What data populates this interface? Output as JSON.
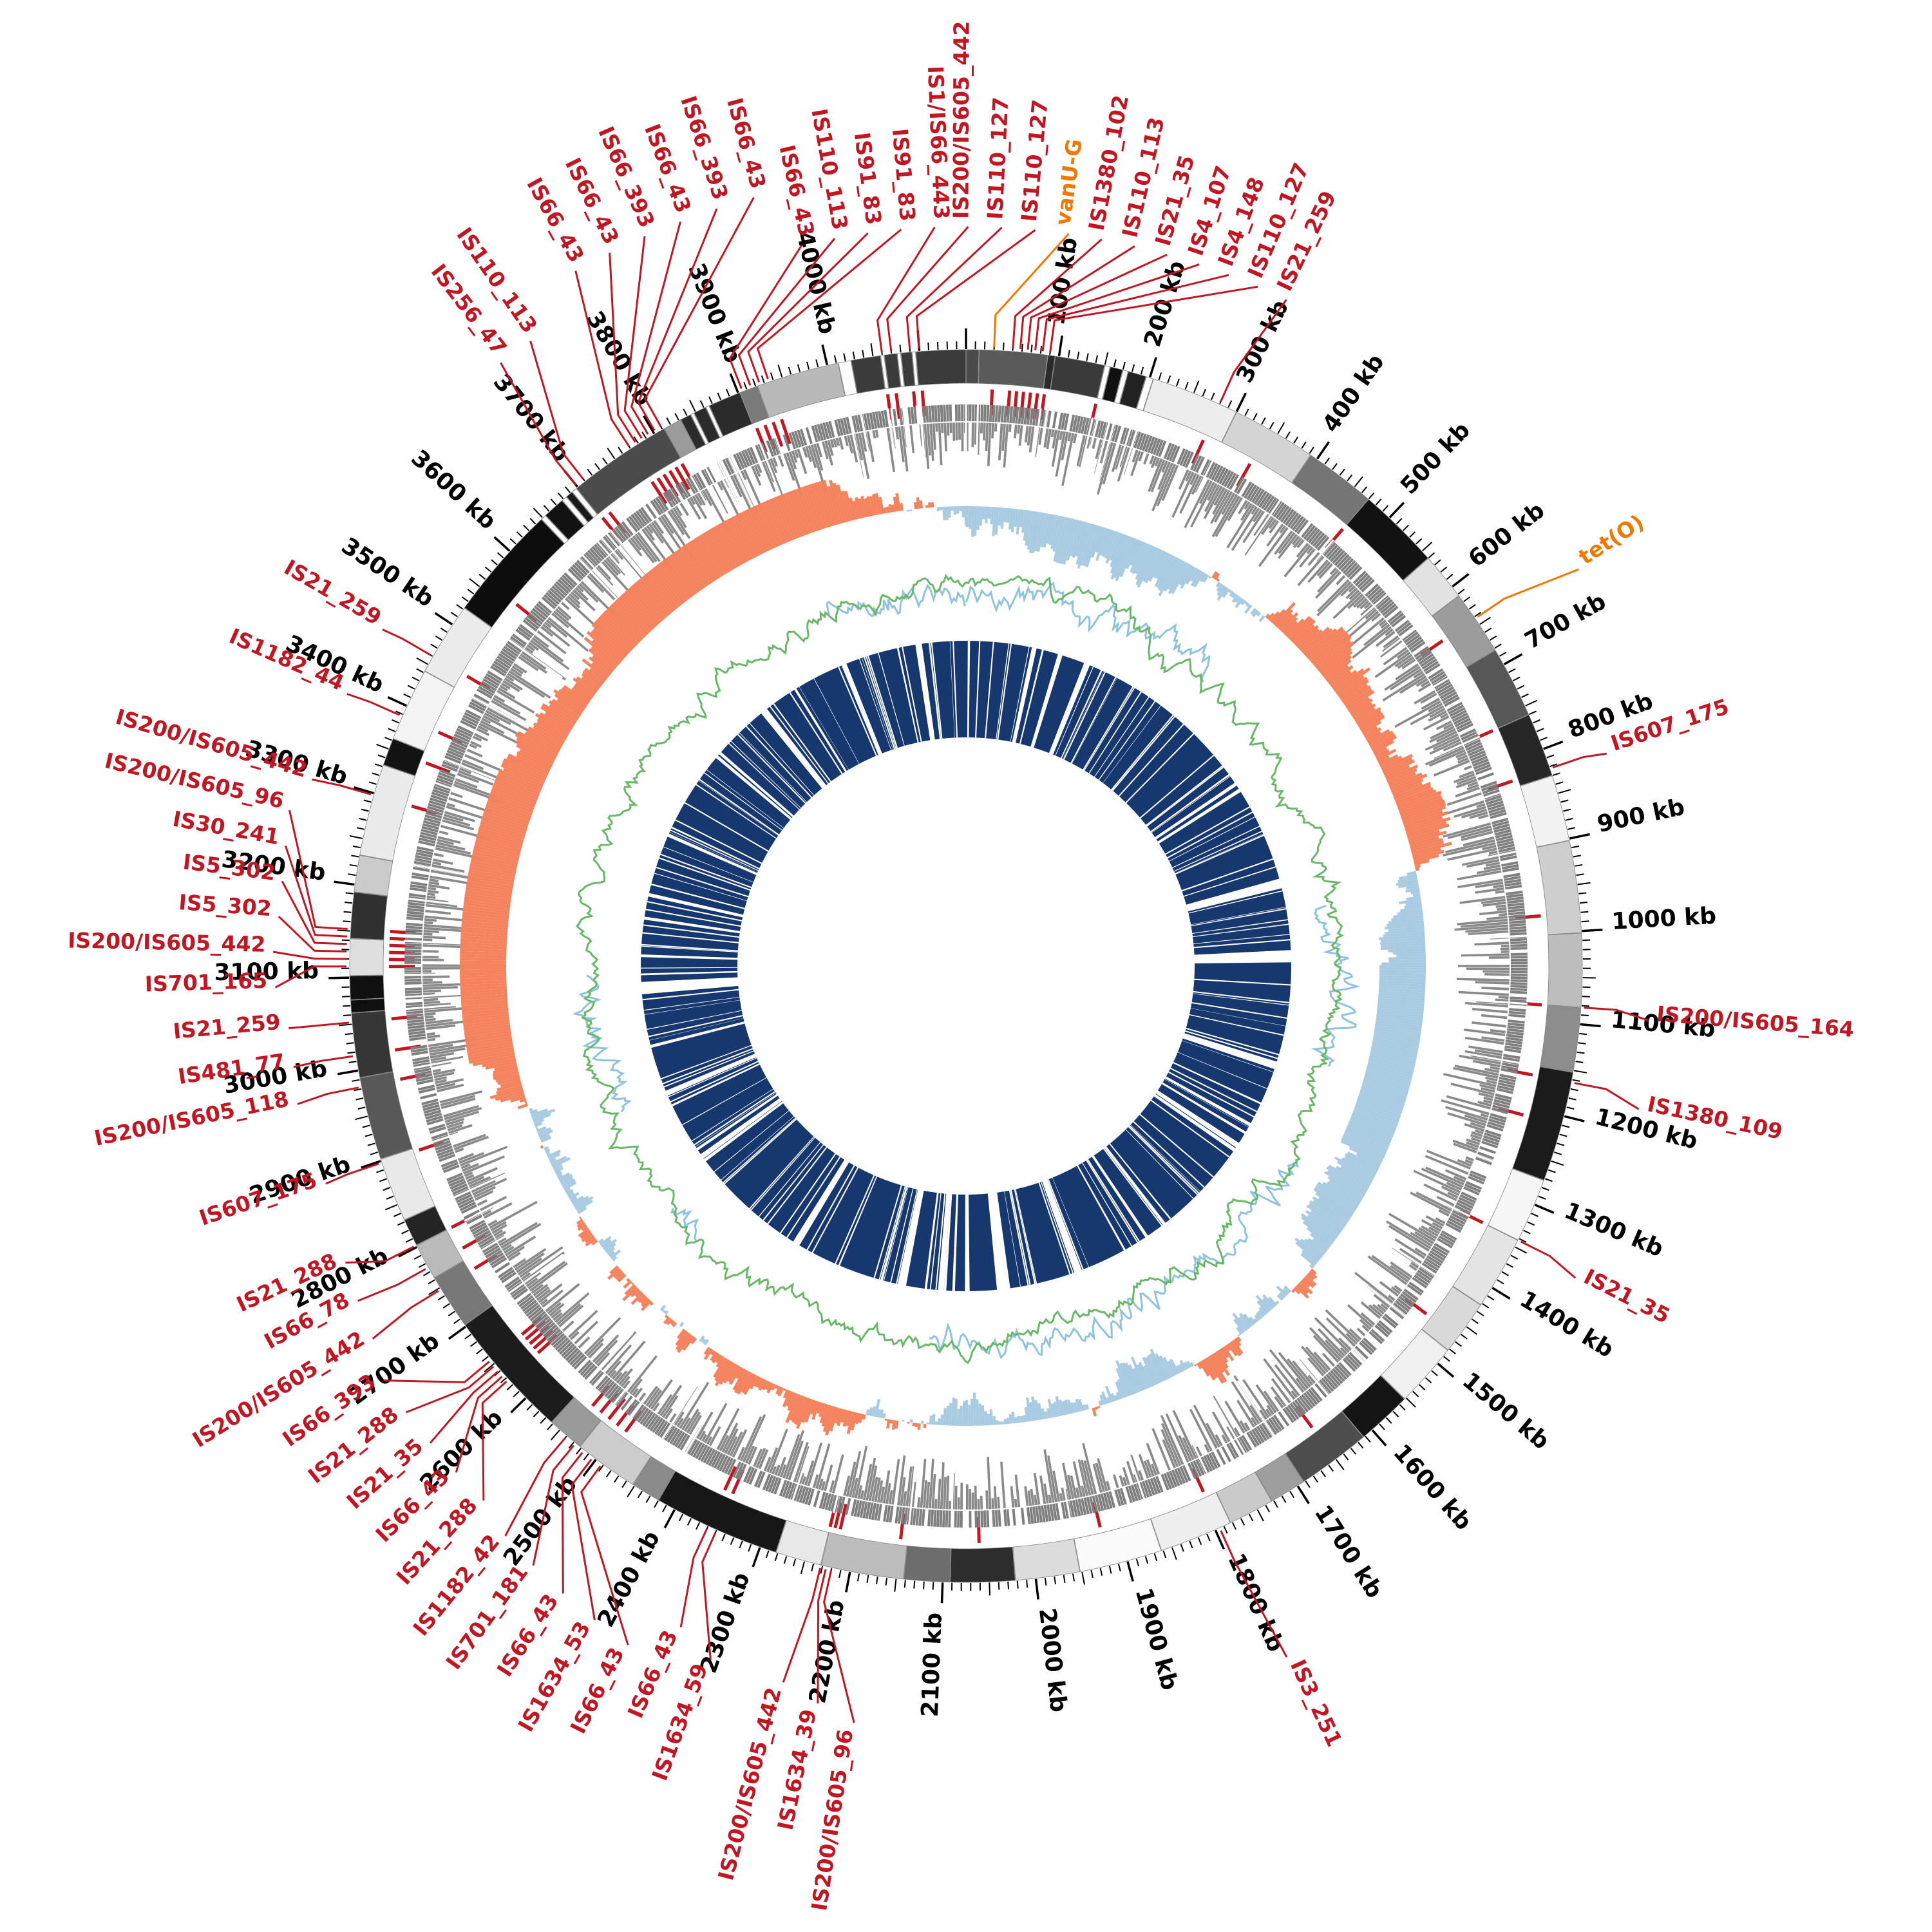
{
  "figure": {
    "description": "Circular bacterial genome plot (Circos style) with contig ring, IS-element ticks, CDS density, GC skew, GC content and coverage rings, annotated with IS element and resistance gene labels"
  },
  "chart_data": {
    "type": "circos",
    "genome_length_kb": 4150,
    "scale": {
      "minor_kb": 10,
      "mid_kb": 50,
      "major_kb": 100,
      "unit": "kb",
      "first_label_kb": 100,
      "last_label_kb": 4000,
      "r": 958,
      "label_r": 1005
    },
    "colors": {
      "tick": "#000000",
      "is": "#c01722",
      "gene": "#f07800",
      "skew_pos": "#f4825c",
      "skew_neg": "#a9cbe1",
      "gc": "#68b868",
      "gc_alt": "#8fc3dd",
      "cds": "#8a8a8a",
      "cds_solid": "#7f7f7f",
      "coverage": "#16386e",
      "contig_stroke": "#808080"
    },
    "rings": {
      "contigs": {
        "r0": 905,
        "r1": 957
      },
      "is_ticks": {
        "r0": 856,
        "r1": 896
      },
      "cds": {
        "r0": 770,
        "r1": 872,
        "solid_r0": 846
      },
      "gc_skew": {
        "r0": 640,
        "r1": 788,
        "base": 714,
        "amp": 72
      },
      "gc_content": {
        "r0": 532,
        "r1": 636,
        "base": 584,
        "amp": 52
      },
      "coverage": {
        "r0": 355,
        "r1": 505
      }
    },
    "seeds": {
      "cds": 11,
      "skew_low": 21,
      "skew_mid": 22,
      "skew_high": 23,
      "gc_mid": 31,
      "gc_high": 32,
      "gc_gate": 33,
      "blue_mid": 34,
      "blue_high": 35,
      "coverage": 41
    },
    "contigs": [
      [
        0,
        14,
        "#4a4a4a"
      ],
      [
        14,
        88,
        "#5a5a5a"
      ],
      [
        88,
        96,
        "#2a2a2a"
      ],
      [
        96,
        150,
        "#3a3a3a"
      ],
      [
        150,
        156,
        "#ffffff"
      ],
      [
        156,
        170,
        "#111111"
      ],
      [
        170,
        176,
        "#ffffff"
      ],
      [
        176,
        196,
        "#222222"
      ],
      [
        196,
        204,
        "#ffffff"
      ],
      [
        204,
        300,
        "#ededed"
      ],
      [
        300,
        392,
        "#d4d4d4"
      ],
      [
        392,
        470,
        "#757575"
      ],
      [
        470,
        560,
        "#121212"
      ],
      [
        560,
        612,
        "#e2e2e2"
      ],
      [
        612,
        682,
        "#9c9c9c"
      ],
      [
        682,
        760,
        "#575757"
      ],
      [
        760,
        830,
        "#262626"
      ],
      [
        830,
        902,
        "#f2f2f2"
      ],
      [
        902,
        1002,
        "#cecece"
      ],
      [
        1002,
        1082,
        "#bdbdbd"
      ],
      [
        1082,
        1152,
        "#8d8d8d"
      ],
      [
        1152,
        1272,
        "#1b1b1b"
      ],
      [
        1272,
        1342,
        "#f6f6f6"
      ],
      [
        1342,
        1422,
        "#e4e4e4"
      ],
      [
        1422,
        1482,
        "#d9d9d9"
      ],
      [
        1482,
        1552,
        "#f0f0f0"
      ],
      [
        1552,
        1612,
        "#141414"
      ],
      [
        1612,
        1692,
        "#4d4d4d"
      ],
      [
        1692,
        1732,
        "#9e9e9e"
      ],
      [
        1732,
        1782,
        "#cacaca"
      ],
      [
        1782,
        1862,
        "#eeeeee"
      ],
      [
        1862,
        1952,
        "#fafafa"
      ],
      [
        1952,
        2022,
        "#dcdcdc"
      ],
      [
        2022,
        2092,
        "#2d2d2d"
      ],
      [
        2092,
        2142,
        "#6d6d6d"
      ],
      [
        2142,
        2232,
        "#bcbcbc"
      ],
      [
        2232,
        2282,
        "#e7e7e7"
      ],
      [
        2282,
        2420,
        "#171717"
      ],
      [
        2420,
        2452,
        "#8b8b8b"
      ],
      [
        2452,
        2522,
        "#cccccc"
      ],
      [
        2522,
        2562,
        "#9a9a9a"
      ],
      [
        2562,
        2702,
        "#1c1c1c"
      ],
      [
        2702,
        2762,
        "#787878"
      ],
      [
        2762,
        2802,
        "#bababa"
      ],
      [
        2802,
        2832,
        "#242424"
      ],
      [
        2832,
        2902,
        "#e9e9e9"
      ],
      [
        2902,
        2992,
        "#585858"
      ],
      [
        2992,
        3062,
        "#363636"
      ],
      [
        3062,
        3076,
        "#0f0f0f"
      ],
      [
        3076,
        3102,
        "#101010"
      ],
      [
        3102,
        3142,
        "#dedede"
      ],
      [
        3142,
        3192,
        "#303030"
      ],
      [
        3192,
        3232,
        "#cbcbcb"
      ],
      [
        3232,
        3332,
        "#eaeaea"
      ],
      [
        3332,
        3362,
        "#131313"
      ],
      [
        3362,
        3442,
        "#f3f3f3"
      ],
      [
        3442,
        3522,
        "#ebebeb"
      ],
      [
        3522,
        3648,
        "#0d0d0d"
      ],
      [
        3648,
        3654,
        "#ffffff"
      ],
      [
        3654,
        3678,
        "#121212"
      ],
      [
        3678,
        3684,
        "#ffffff"
      ],
      [
        3684,
        3692,
        "#1a1a1a"
      ],
      [
        3692,
        3698,
        "#ffffff"
      ],
      [
        3698,
        3812,
        "#4b4b4b"
      ],
      [
        3812,
        3832,
        "#9b9b9b"
      ],
      [
        3832,
        3844,
        "#2b2b2b"
      ],
      [
        3844,
        3848,
        "#ffffff"
      ],
      [
        3848,
        3862,
        "#2b2b2b"
      ],
      [
        3862,
        3866,
        "#ffffff"
      ],
      [
        3866,
        3902,
        "#2b2b2b"
      ],
      [
        3902,
        3922,
        "#7a7a7a"
      ],
      [
        3922,
        4012,
        "#b9b9b9"
      ],
      [
        4012,
        4026,
        "#fcfcfc"
      ],
      [
        4026,
        4058,
        "#3b3b3b"
      ],
      [
        4058,
        4062,
        "#ffffff"
      ],
      [
        4062,
        4076,
        "#3b3b3b"
      ],
      [
        4076,
        4080,
        "#ffffff"
      ],
      [
        4080,
        4092,
        "#3b3b3b"
      ],
      [
        4092,
        4096,
        "#ffffff"
      ],
      [
        4096,
        4150,
        "#3b3b3b"
      ]
    ],
    "extra_is_ticks": [
      150,
      340,
      470,
      760,
      980,
      1210,
      1465,
      1650,
      1920,
      2060,
      2150,
      3350,
      3560
    ],
    "coverage_gaps": [
      [
        868,
        878
      ],
      [
        1005,
        1030
      ],
      [
        1430,
        1438
      ],
      [
        1985,
        2012
      ],
      [
        2120,
        2132
      ],
      [
        2430,
        2445
      ],
      [
        2695,
        2705
      ],
      [
        3055,
        3080
      ],
      [
        3255,
        3262
      ],
      [
        3700,
        3715
      ],
      [
        4048,
        4060
      ]
    ],
    "annotations": [
      {
        "t": "IS66_43",
        "p": 3905,
        "lp": 4002,
        "r": 1160
      },
      {
        "t": "IS110_113",
        "p": 3915,
        "lp": 4032,
        "r": 1160
      },
      {
        "t": "IS91_83",
        "p": 3925,
        "lp": 4062,
        "r": 1160
      },
      {
        "t": "IS91_83",
        "p": 3935,
        "lp": 4092,
        "r": 1160
      },
      {
        "t": "IS1/IS66_443",
        "p": 4060,
        "lp": 4122,
        "r": 1160
      },
      {
        "t": "IS200/IS605_442",
        "p": 4070,
        "lp": 4152,
        "r": 1160
      },
      {
        "t": "IS110_127",
        "p": 4090,
        "lp": 4182,
        "r": 1160
      },
      {
        "t": "IS110_127",
        "p": 4100,
        "lp": 4212,
        "r": 1160
      },
      {
        "t": "vanU-G",
        "p": 30,
        "lp": 92,
        "r": 1160,
        "c": "gene"
      },
      {
        "t": "IS1380_102",
        "p": 50,
        "lp": 122,
        "r": 1160
      },
      {
        "t": "IS110_113",
        "p": 58,
        "lp": 152,
        "r": 1160
      },
      {
        "t": "IS21_35",
        "p": 66,
        "lp": 182,
        "r": 1160
      },
      {
        "t": "IS4_107",
        "p": 74,
        "lp": 212,
        "r": 1160
      },
      {
        "t": "IS4_148",
        "p": 82,
        "lp": 240,
        "r": 1160
      },
      {
        "t": "IS110_127",
        "p": 90,
        "lp": 268,
        "r": 1160
      },
      {
        "t": "IS21_259",
        "p": 280,
        "lp": 296,
        "r": 1160
      },
      {
        "t": "tet(O)",
        "p": 642,
        "lp": 658,
        "r": 1145,
        "c": "gene"
      },
      {
        "t": "IS607_175",
        "p": 822,
        "lp": 826,
        "r": 1060
      },
      {
        "t": "IS200/IS605_164",
        "p": 1082,
        "lp": 1090,
        "r": 1075
      },
      {
        "t": "IS1380_109",
        "p": 1163,
        "lp": 1176,
        "r": 1080
      },
      {
        "t": "IS21_35",
        "p": 1342,
        "lp": 1350,
        "r": 1075
      },
      {
        "t": "IS3_251",
        "p": 1795,
        "lp": 1788,
        "r": 1195
      },
      {
        "t": "IS200/IS605_96",
        "p": 2220,
        "lp": 2172,
        "r": 1200
      },
      {
        "t": "IS1634_39",
        "p": 2226,
        "lp": 2206,
        "r": 1180
      },
      {
        "t": "IS200/IS605_442",
        "p": 2232,
        "lp": 2240,
        "r": 1160
      },
      {
        "t": "IS1634_59",
        "p": 2350,
        "lp": 2308,
        "r": 1160
      },
      {
        "t": "IS66_43",
        "p": 2360,
        "lp": 2344,
        "r": 1130
      },
      {
        "t": "IS66_43",
        "p": 2492,
        "lp": 2380,
        "r": 1190
      },
      {
        "t": "IS1634_53",
        "p": 2504,
        "lp": 2416,
        "r": 1180
      },
      {
        "t": "IS66_43",
        "p": 2516,
        "lp": 2452,
        "r": 1170
      },
      {
        "t": "IS701_181",
        "p": 2528,
        "lp": 2488,
        "r": 1160
      },
      {
        "t": "IS1182_42",
        "p": 2540,
        "lp": 2524,
        "r": 1150
      },
      {
        "t": "IS21_288",
        "p": 2627,
        "lp": 2560,
        "r": 1130
      },
      {
        "t": "IS66_43",
        "p": 2634,
        "lp": 2596,
        "r": 1128
      },
      {
        "t": "IS21_35",
        "p": 2641,
        "lp": 2632,
        "r": 1126
      },
      {
        "t": "IS21_288",
        "p": 2648,
        "lp": 2668,
        "r": 1124
      },
      {
        "t": "IS66_393",
        "p": 2655,
        "lp": 2704,
        "r": 1122
      },
      {
        "t": "IS200/IS605_442",
        "p": 2748,
        "lp": 2742,
        "r": 1100
      },
      {
        "t": "IS66_78",
        "p": 2775,
        "lp": 2780,
        "r": 1090
      },
      {
        "t": "IS21_288",
        "p": 2802,
        "lp": 2818,
        "r": 1080
      },
      {
        "t": "IS607_175",
        "p": 2898,
        "lp": 2896,
        "r": 1062
      },
      {
        "t": "IS200/IS605_118",
        "p": 2982,
        "lp": 2978,
        "r": 1072
      },
      {
        "t": "IS481_77",
        "p": 3016,
        "lp": 3014,
        "r": 1068
      },
      {
        "t": "IS21_259",
        "p": 3052,
        "lp": 3052,
        "r": 1068
      },
      {
        "t": "IS701_165",
        "p": 3112,
        "lp": 3092,
        "r": 1085
      },
      {
        "t": "IS200/IS605_442",
        "p": 3120,
        "lp": 3126,
        "r": 1088
      },
      {
        "t": "IS5_302",
        "p": 3128,
        "lp": 3160,
        "r": 1082
      },
      {
        "t": "IS5_302",
        "p": 3136,
        "lp": 3194,
        "r": 1082
      },
      {
        "t": "IS30_241",
        "p": 3144,
        "lp": 3228,
        "r": 1085
      },
      {
        "t": "IS200/IS605_96",
        "p": 3152,
        "lp": 3262,
        "r": 1090
      },
      {
        "t": "IS200/IS605_442",
        "p": 3298,
        "lp": 3296,
        "r": 1068
      },
      {
        "t": "IS1182_44",
        "p": 3388,
        "lp": 3386,
        "r": 1062
      },
      {
        "t": "IS21_259",
        "p": 3460,
        "lp": 3458,
        "r": 1058
      },
      {
        "t": "IS256_47",
        "p": 3700,
        "lp": 3716,
        "r": 1195
      },
      {
        "t": "IS110_113",
        "p": 3710,
        "lp": 3748,
        "r": 1195
      },
      {
        "t": "IS66_43",
        "p": 3770,
        "lp": 3812,
        "r": 1250
      },
      {
        "t": "IS66_43",
        "p": 3778,
        "lp": 3844,
        "r": 1250
      },
      {
        "t": "IS66_393",
        "p": 3786,
        "lp": 3876,
        "r": 1250
      },
      {
        "t": "IS66_43",
        "p": 3794,
        "lp": 3908,
        "r": 1250
      },
      {
        "t": "IS66_393",
        "p": 3802,
        "lp": 3940,
        "r": 1250
      },
      {
        "t": "IS66_43",
        "p": 3810,
        "lp": 3972,
        "r": 1250
      }
    ]
  }
}
